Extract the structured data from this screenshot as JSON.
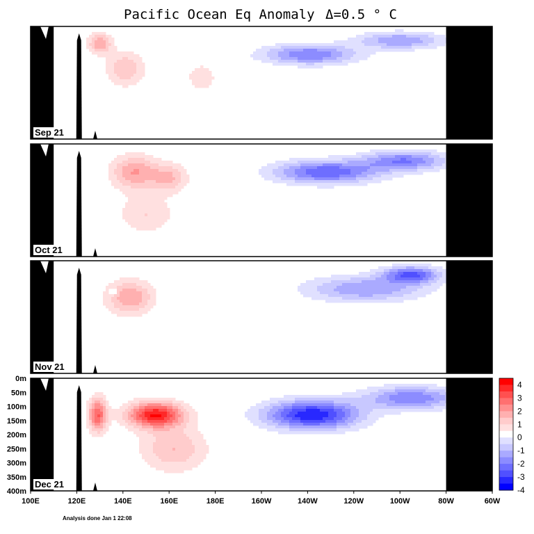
{
  "chart_data": {
    "type": "heatmap",
    "title": "Pacific Ocean Eq Anomaly",
    "interval_label": "Δ=0.5 ° C",
    "xlabel": "",
    "ylabel": "",
    "x_ticks": [
      "100E",
      "120E",
      "140E",
      "160E",
      "180E",
      "160W",
      "140W",
      "120W",
      "100W",
      "80W",
      "60W"
    ],
    "x_range_deg_east": [
      100,
      300
    ],
    "depth_ticks": [
      "0m",
      "50m",
      "100m",
      "150m",
      "200m",
      "250m",
      "300m",
      "350m",
      "400m"
    ],
    "depth_range_m": [
      0,
      400
    ],
    "colorbar": {
      "labels": [
        "4",
        "3",
        "2",
        "1",
        "0",
        "-1",
        "-2",
        "-3",
        "-4"
      ],
      "levels": [
        4,
        3.5,
        3,
        2.5,
        2,
        1.5,
        1,
        0.5,
        0,
        -0.5,
        -1,
        -1.5,
        -2,
        -2.5,
        -3,
        -3.5,
        -4
      ],
      "colors": [
        "#ff0000",
        "#ff2828",
        "#ff5050",
        "#ff7070",
        "#ff9090",
        "#ffb0b0",
        "#ffcccc",
        "#ffe0e0",
        "#ffffff",
        "#e0e0ff",
        "#c8c8ff",
        "#aaaaff",
        "#8c8cff",
        "#6e6eff",
        "#5050ff",
        "#2828ff",
        "#0000ff"
      ]
    },
    "panels": [
      {
        "month": "Sep 21",
        "anomalies": [
          {
            "lon": 130,
            "depth": 60,
            "value": 2.0,
            "spread_lon": 5,
            "spread_depth": 35
          },
          {
            "lon": 141,
            "depth": 150,
            "value": 1.5,
            "spread_lon": 8,
            "spread_depth": 60
          },
          {
            "lon": 174,
            "depth": 180,
            "value": 1.0,
            "spread_lon": 6,
            "spread_depth": 45
          },
          {
            "lon": 221,
            "depth": 100,
            "value": -2.5,
            "spread_lon": 20,
            "spread_depth": 35
          },
          {
            "lon": 260,
            "depth": 50,
            "value": -2.0,
            "spread_lon": 18,
            "spread_depth": 30
          }
        ]
      },
      {
        "month": "Oct 21",
        "anomalies": [
          {
            "lon": 145,
            "depth": 100,
            "value": 2.0,
            "spread_lon": 10,
            "spread_depth": 60
          },
          {
            "lon": 160,
            "depth": 120,
            "value": 1.5,
            "spread_lon": 8,
            "spread_depth": 50
          },
          {
            "lon": 150,
            "depth": 250,
            "value": 1.0,
            "spread_lon": 12,
            "spread_depth": 70
          },
          {
            "lon": 228,
            "depth": 100,
            "value": -3.0,
            "spread_lon": 22,
            "spread_depth": 40
          },
          {
            "lon": 262,
            "depth": 60,
            "value": -2.5,
            "spread_lon": 18,
            "spread_depth": 35
          }
        ]
      },
      {
        "month": "Nov 21",
        "anomalies": [
          {
            "lon": 143,
            "depth": 130,
            "value": 2.0,
            "spread_lon": 10,
            "spread_depth": 60
          },
          {
            "lon": 136,
            "depth": 110,
            "value": -1.5,
            "spread_lon": 1.5,
            "spread_depth": 10
          },
          {
            "lon": 245,
            "depth": 100,
            "value": -2.0,
            "spread_lon": 25,
            "spread_depth": 45
          },
          {
            "lon": 265,
            "depth": 50,
            "value": -3.0,
            "spread_lon": 12,
            "spread_depth": 30
          }
        ]
      },
      {
        "month": "Dec 21",
        "anomalies": [
          {
            "lon": 129,
            "depth": 130,
            "value": 3.0,
            "spread_lon": 4,
            "spread_depth": 60
          },
          {
            "lon": 154,
            "depth": 130,
            "value": 4.0,
            "spread_lon": 12,
            "spread_depth": 45
          },
          {
            "lon": 162,
            "depth": 250,
            "value": 1.5,
            "spread_lon": 14,
            "spread_depth": 80
          },
          {
            "lon": 222,
            "depth": 130,
            "value": -4.0,
            "spread_lon": 20,
            "spread_depth": 50
          },
          {
            "lon": 265,
            "depth": 70,
            "value": -2.5,
            "spread_lon": 20,
            "spread_depth": 40
          }
        ]
      }
    ]
  },
  "footer_note": "Analysis done Jan 1 22:08"
}
